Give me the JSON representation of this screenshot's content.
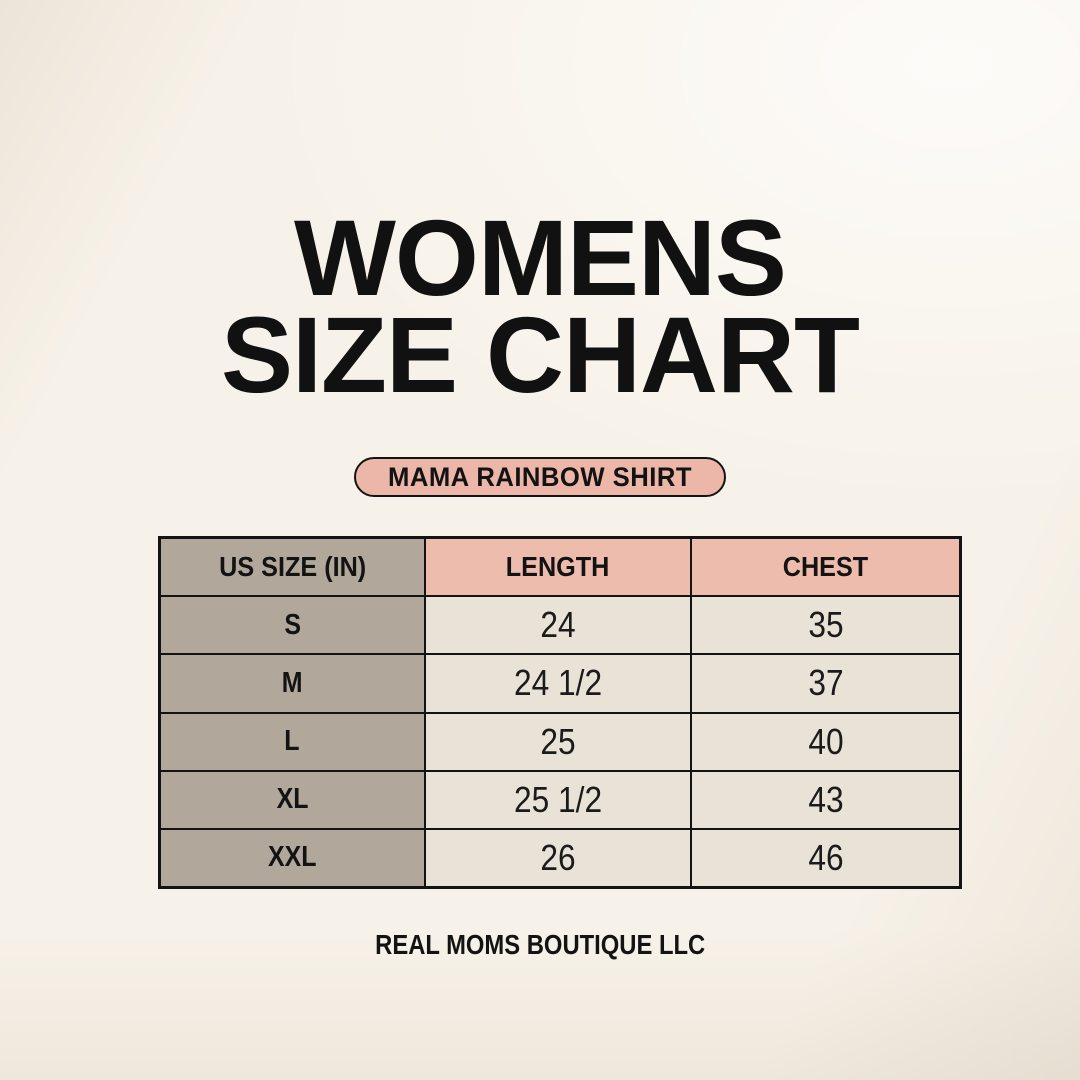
{
  "header": {
    "title_line1": "WOMENS",
    "title_line2": "SIZE CHART",
    "product_badge": "MAMA RAINBOW SHIRT"
  },
  "footer": {
    "brand": "REAL MOMS BOUTIQUE LLC"
  },
  "colors": {
    "background": "#f7f2e9",
    "badge_pink": "#ecb7a8",
    "header_pink": "#edbcac",
    "taupe": "#b2a79b",
    "cell_cream": "#e9e2d6",
    "border_black": "#131313"
  },
  "chart_data": {
    "type": "table",
    "title": "WOMENS SIZE CHART",
    "badge": "MAMA RAINBOW SHIRT",
    "columns": [
      "US SIZE (IN)",
      "LENGTH",
      "CHEST"
    ],
    "rows": [
      [
        "S",
        "24",
        "35"
      ],
      [
        "M",
        "24 1/2",
        "37"
      ],
      [
        "L",
        "25",
        "40"
      ],
      [
        "XL",
        "25 1/2",
        "43"
      ],
      [
        "XXL",
        "26",
        "46"
      ]
    ]
  }
}
